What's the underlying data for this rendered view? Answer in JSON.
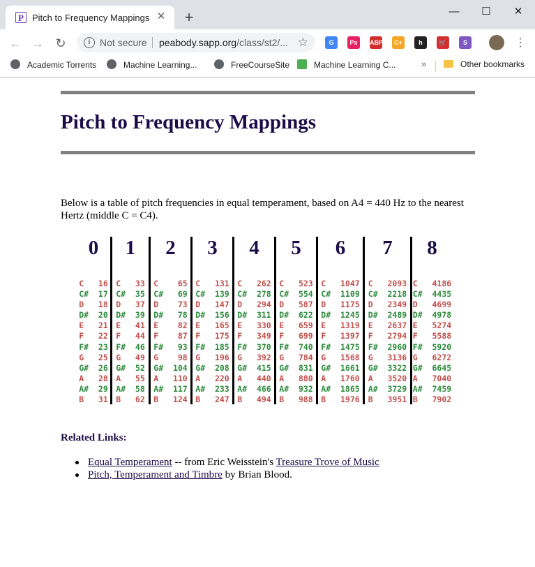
{
  "browser": {
    "tab_title": "Pitch to Frequency Mappings",
    "tab_favicon": "P",
    "security_label": "Not secure",
    "url_host": "peabody.sapp.org",
    "url_path": "/class/st2/...",
    "bookmarks": [
      "Academic Torrents",
      "Machine Learning...",
      "FreeCourseSite",
      "Machine Learning C..."
    ],
    "other_bookmarks": "Other bookmarks",
    "extensions": [
      {
        "name": "google-translate-icon",
        "color": "#4285f4",
        "label": "G"
      },
      {
        "name": "pixijs-icon",
        "color": "#e91e63",
        "label": "Px"
      },
      {
        "name": "adblock-plus-icon",
        "color": "#d32f2f",
        "label": "ABP"
      },
      {
        "name": "cplus-extension-icon",
        "color": "#f5a623",
        "label": "C+"
      },
      {
        "name": "h-extension-icon",
        "color": "#222222",
        "label": "h"
      },
      {
        "name": "cart-extension-icon",
        "color": "#d32f2f",
        "label": "🛒"
      },
      {
        "name": "spiral-extension-icon",
        "color": "#7e57c2",
        "label": "S"
      }
    ]
  },
  "page": {
    "title": "Pitch to Frequency Mappings",
    "intro": "Below is a table of pitch frequencies in equal temperament, based on A4 = 440 Hz to the nearest Hertz (middle C = C4).",
    "notes": [
      "C",
      "C#",
      "D",
      "D#",
      "E",
      "F",
      "F#",
      "G",
      "G#",
      "A",
      "A#",
      "B"
    ],
    "octaves": [
      {
        "label": "0",
        "freqs": [
          "16",
          "17",
          "18",
          "20",
          "21",
          "22",
          "23",
          "25",
          "26",
          "28",
          "29",
          "31"
        ]
      },
      {
        "label": "1",
        "freqs": [
          "33",
          "35",
          "37",
          "39",
          "41",
          "44",
          "46",
          "49",
          "52",
          "55",
          "58",
          "62"
        ]
      },
      {
        "label": "2",
        "freqs": [
          "65",
          "69",
          "73",
          "78",
          "82",
          "87",
          "93",
          "98",
          "104",
          "110",
          "117",
          "124"
        ]
      },
      {
        "label": "3",
        "freqs": [
          "131",
          "139",
          "147",
          "156",
          "165",
          "175",
          "185",
          "196",
          "208",
          "220",
          "233",
          "247"
        ]
      },
      {
        "label": "4",
        "freqs": [
          "262",
          "278",
          "294",
          "311",
          "330",
          "349",
          "370",
          "392",
          "415",
          "440",
          "466",
          "494"
        ]
      },
      {
        "label": "5",
        "freqs": [
          "523",
          "554",
          "587",
          "622",
          "659",
          "699",
          "740",
          "784",
          "831",
          "880",
          "932",
          "988"
        ]
      },
      {
        "label": "6",
        "freqs": [
          "1047",
          "1109",
          "1175",
          "1245",
          "1319",
          "1397",
          "1475",
          "1568",
          "1661",
          "1760",
          "1865",
          "1976"
        ]
      },
      {
        "label": "7",
        "freqs": [
          "2093",
          "2218",
          "2349",
          "2489",
          "2637",
          "2794",
          "2960",
          "3136",
          "3322",
          "3520",
          "3729",
          "3951"
        ]
      },
      {
        "label": "8",
        "freqs": [
          "4186",
          "4435",
          "4699",
          "4978",
          "5274",
          "5588",
          "5920",
          "6272",
          "6645",
          "7040",
          "7459",
          "7902"
        ]
      }
    ],
    "related_title": "Related Links:",
    "links": [
      {
        "link1": "Equal Temperament",
        "mid": " -- from Eric Weisstein's ",
        "link2": "Treasure Trove of Music",
        "tail": ""
      },
      {
        "link1": "Pitch, Temperament and Timbre",
        "mid": " by Brian Blood.",
        "link2": "",
        "tail": ""
      }
    ]
  }
}
